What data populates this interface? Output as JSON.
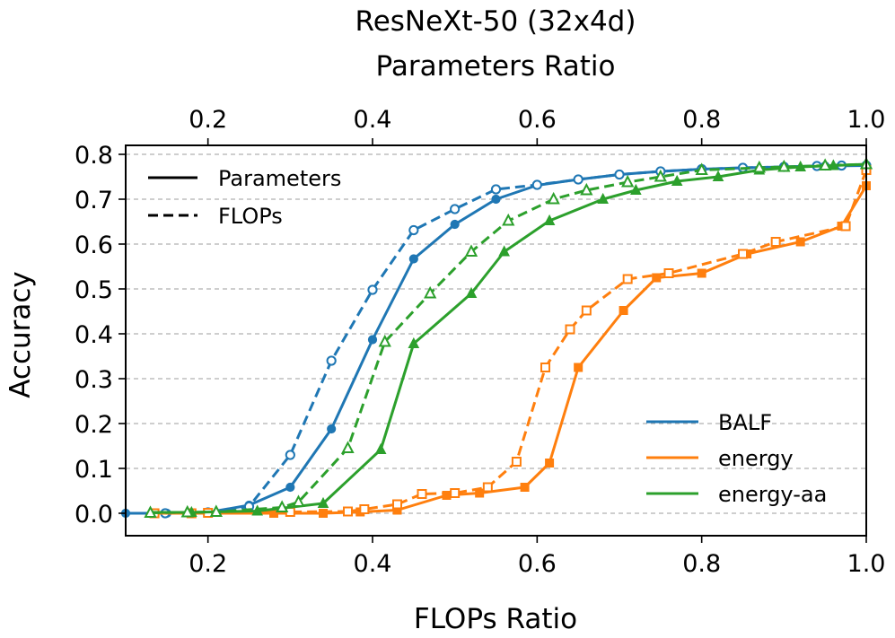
{
  "chart_data": {
    "type": "line",
    "title": "ResNeXt-50 (32x4d)",
    "xlabel": "FLOPs Ratio",
    "x2label": "Parameters Ratio",
    "ylabel": "Accuracy",
    "xlim": [
      0.1,
      1.0
    ],
    "ylim": [
      -0.05,
      0.82
    ],
    "xticks": [
      0.2,
      0.4,
      0.6,
      0.8,
      1.0
    ],
    "xtick_labels": [
      "0.2",
      "0.4",
      "0.6",
      "0.8",
      "1.0"
    ],
    "x2ticks": [
      0.2,
      0.4,
      0.6,
      0.8,
      1.0
    ],
    "x2tick_labels": [
      "0.2",
      "0.4",
      "0.6",
      "0.8",
      "1.0"
    ],
    "yticks": [
      0.0,
      0.1,
      0.2,
      0.3,
      0.4,
      0.5,
      0.6,
      0.7,
      0.8
    ],
    "ytick_labels": [
      "0.0",
      "0.1",
      "0.2",
      "0.3",
      "0.4",
      "0.5",
      "0.6",
      "0.7",
      "0.8"
    ],
    "grid": "horizontal-dashed",
    "style_legend": {
      "position": "top-left",
      "entries": [
        {
          "label": "Parameters",
          "dash": "solid"
        },
        {
          "label": "FLOPs",
          "dash": "dashed"
        }
      ]
    },
    "method_legend": {
      "position": "bottom-right",
      "entries": [
        {
          "label": "BALF",
          "color": "#1f77b4"
        },
        {
          "label": "energy",
          "color": "#ff7f0e"
        },
        {
          "label": "energy-aa",
          "color": "#2ca02c"
        }
      ]
    },
    "series": [
      {
        "name": "BALF",
        "metric": "Parameters",
        "color": "#1f77b4",
        "marker": "circle",
        "dash": "solid",
        "x": [
          0.1,
          0.15,
          0.2,
          0.25,
          0.3,
          0.35,
          0.4,
          0.45,
          0.5,
          0.55,
          0.6,
          0.65,
          0.7,
          0.75,
          0.8,
          0.85,
          0.9,
          0.95,
          1.0
        ],
        "y": [
          0.0,
          0.0,
          0.002,
          0.018,
          0.058,
          0.188,
          0.387,
          0.567,
          0.644,
          0.7,
          0.731,
          0.744,
          0.755,
          0.762,
          0.767,
          0.77,
          0.772,
          0.774,
          0.775
        ]
      },
      {
        "name": "BALF",
        "metric": "FLOPs",
        "color": "#1f77b4",
        "marker": "circle-open",
        "dash": "dashed",
        "x": [
          0.148,
          0.2,
          0.25,
          0.3,
          0.35,
          0.4,
          0.45,
          0.5,
          0.55,
          0.6,
          0.65,
          0.7,
          0.75,
          0.8,
          0.85,
          0.9,
          0.94,
          0.97,
          1.0
        ],
        "y": [
          0.0,
          0.002,
          0.015,
          0.13,
          0.34,
          0.498,
          0.631,
          0.678,
          0.722,
          0.732,
          0.744,
          0.755,
          0.762,
          0.767,
          0.77,
          0.772,
          0.774,
          0.775,
          0.775
        ]
      },
      {
        "name": "energy",
        "metric": "Parameters",
        "color": "#ff7f0e",
        "marker": "square",
        "dash": "solid",
        "x": [
          0.135,
          0.18,
          0.2,
          0.28,
          0.34,
          0.385,
          0.43,
          0.49,
          0.53,
          0.585,
          0.615,
          0.65,
          0.705,
          0.745,
          0.8,
          0.855,
          0.92,
          0.97,
          1.0
        ],
        "y": [
          0.0,
          0.0,
          0.0,
          0.0,
          0.0,
          0.003,
          0.007,
          0.04,
          0.045,
          0.058,
          0.112,
          0.325,
          0.452,
          0.525,
          0.535,
          0.578,
          0.605,
          0.64,
          0.73
        ]
      },
      {
        "name": "energy",
        "metric": "FLOPs",
        "color": "#ff7f0e",
        "marker": "square-open",
        "dash": "dashed",
        "x": [
          0.135,
          0.18,
          0.2,
          0.3,
          0.37,
          0.39,
          0.43,
          0.46,
          0.5,
          0.54,
          0.575,
          0.61,
          0.64,
          0.66,
          0.71,
          0.76,
          0.85,
          0.89,
          0.975,
          1.0
        ],
        "y": [
          0.0,
          0.0,
          0.001,
          0.003,
          0.004,
          0.009,
          0.02,
          0.043,
          0.045,
          0.058,
          0.115,
          0.325,
          0.41,
          0.452,
          0.522,
          0.535,
          0.578,
          0.605,
          0.64,
          0.765
        ]
      },
      {
        "name": "energy-aa",
        "metric": "Parameters",
        "color": "#2ca02c",
        "marker": "triangle",
        "dash": "solid",
        "x": [
          0.13,
          0.18,
          0.26,
          0.34,
          0.41,
          0.45,
          0.52,
          0.56,
          0.615,
          0.68,
          0.72,
          0.77,
          0.82,
          0.87,
          0.92,
          0.96,
          1.0
        ],
        "y": [
          0.002,
          0.002,
          0.005,
          0.022,
          0.142,
          0.378,
          0.49,
          0.583,
          0.652,
          0.7,
          0.72,
          0.74,
          0.75,
          0.765,
          0.772,
          0.775,
          0.778
        ]
      },
      {
        "name": "energy-aa",
        "metric": "FLOPs",
        "color": "#2ca02c",
        "marker": "triangle-open",
        "dash": "dashed",
        "x": [
          0.13,
          0.175,
          0.21,
          0.29,
          0.31,
          0.37,
          0.415,
          0.47,
          0.52,
          0.565,
          0.62,
          0.66,
          0.71,
          0.75,
          0.8,
          0.87,
          0.9,
          0.95,
          1.0
        ],
        "y": [
          0.001,
          0.002,
          0.003,
          0.013,
          0.025,
          0.145,
          0.382,
          0.49,
          0.583,
          0.652,
          0.7,
          0.72,
          0.738,
          0.75,
          0.765,
          0.77,
          0.772,
          0.775,
          0.778
        ]
      }
    ]
  }
}
